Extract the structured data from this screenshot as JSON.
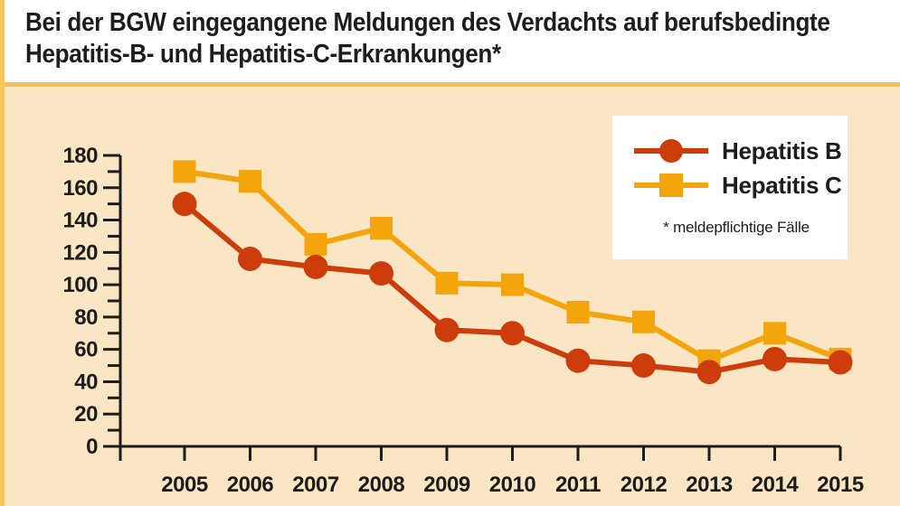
{
  "title": {
    "line1": "Bei der BGW eingegangene Meldungen des Verdachts auf berufsbedingte",
    "line2": "Hepatitis-B- und Hepatitis-C-Erkrankungen*"
  },
  "legend": {
    "items": [
      {
        "label": "Hepatitis B",
        "marker": "circle",
        "color": "#cd3d0c"
      },
      {
        "label": "Hepatitis C",
        "marker": "square",
        "color": "#f5a50c"
      }
    ],
    "footnote": "* meldepflichtige Fälle"
  },
  "colors": {
    "accent_gold": "#f4c85f",
    "divider_gold": "#f2c455",
    "panel_background": "#fae5c4",
    "title_background": "#ffffff",
    "legend_background": "#ffffff",
    "axis_and_text": "#1d1d1b",
    "hepatitis_b": "#cd3d0c",
    "hepatitis_c": "#f5a50c"
  },
  "chart_data": {
    "type": "line",
    "title": "Bei der BGW eingegangene Meldungen des Verdachts auf berufsbedingte Hepatitis-B- und Hepatitis-C-Erkrankungen*",
    "footnote": "* meldepflichtige Fälle",
    "categories": [
      2005,
      2006,
      2007,
      2008,
      2009,
      2010,
      2011,
      2012,
      2013,
      2014,
      2015
    ],
    "series": [
      {
        "name": "Hepatitis B",
        "marker": "circle",
        "color": "#cd3d0c",
        "values": [
          150,
          116,
          111,
          107,
          72,
          70,
          53,
          50,
          46,
          54,
          52
        ]
      },
      {
        "name": "Hepatitis C",
        "marker": "square",
        "color": "#f5a50c",
        "values": [
          170,
          164,
          125,
          135,
          101,
          100,
          83,
          77,
          53,
          70,
          54
        ]
      }
    ],
    "xlabel": "",
    "ylabel": "",
    "ylim": [
      0,
      180
    ],
    "yticks": [
      0,
      20,
      40,
      60,
      80,
      100,
      120,
      140,
      160,
      180
    ],
    "ytick_minor_step": 10,
    "grid": false,
    "legend_position": "top-right"
  }
}
